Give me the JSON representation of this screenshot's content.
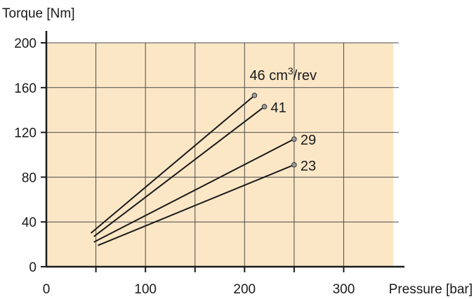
{
  "chart_data": {
    "type": "line",
    "title": "",
    "xlabel": "Pressure [bar]",
    "ylabel": "Torque [Nm]",
    "xlim": [
      0,
      350
    ],
    "ylim": [
      0,
      200
    ],
    "x_ticks": [
      0,
      100,
      200,
      300
    ],
    "x_tick_labels": [
      "0",
      "100",
      "200",
      "300"
    ],
    "y_ticks": [
      0,
      40,
      80,
      120,
      160,
      200
    ],
    "y_tick_labels": [
      "0",
      "40",
      "80",
      "120",
      "160",
      "200"
    ],
    "grid": true,
    "plot_background": "#fbe7c6",
    "line_color": "#1a1a1a",
    "marker_color": "#9c9c9c",
    "series": [
      {
        "name": "46",
        "unit_prefix": "cm",
        "unit_exp": "3",
        "unit_suffix": "/rev",
        "x": [
          45,
          210
        ],
        "y": [
          30,
          153
        ]
      },
      {
        "name": "41",
        "x": [
          48,
          220
        ],
        "y": [
          27,
          143
        ]
      },
      {
        "name": "29",
        "x": [
          48,
          250
        ],
        "y": [
          22,
          114
        ]
      },
      {
        "name": "23",
        "x": [
          52,
          250
        ],
        "y": [
          19,
          91
        ]
      }
    ]
  }
}
